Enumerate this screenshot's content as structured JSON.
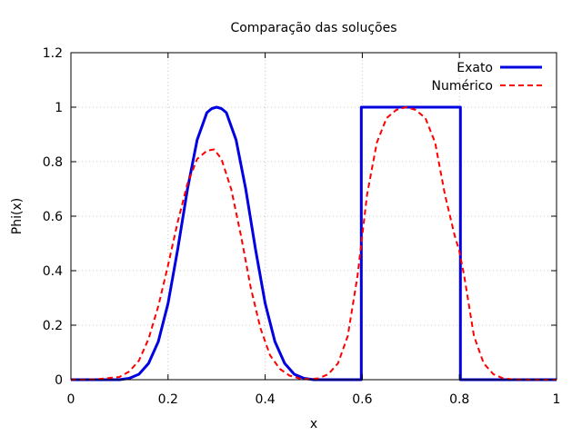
{
  "chart_data": {
    "type": "line",
    "title": "Comparação das soluções",
    "xlabel": "x",
    "ylabel": "Phi(x)",
    "xlim": [
      0,
      1
    ],
    "ylim": [
      0,
      1.2
    ],
    "xticks": [
      0,
      0.2,
      0.4,
      0.6,
      0.8,
      1
    ],
    "yticks": [
      0,
      0.2,
      0.4,
      0.6,
      0.8,
      1,
      1.2
    ],
    "grid": true,
    "legend": "top-right",
    "series": [
      {
        "name": "Exato",
        "color": "#0000e0",
        "dash": "solid",
        "x": [
          0,
          0.1,
          0.12,
          0.14,
          0.16,
          0.18,
          0.2,
          0.22,
          0.24,
          0.26,
          0.28,
          0.29,
          0.3,
          0.31,
          0.32,
          0.34,
          0.36,
          0.38,
          0.4,
          0.42,
          0.44,
          0.46,
          0.48,
          0.5,
          0.598,
          0.598,
          0.602,
          0.6,
          0.8,
          0.802,
          0.802,
          1.0
        ],
        "y": [
          0,
          0,
          0.005,
          0.02,
          0.06,
          0.14,
          0.28,
          0.48,
          0.7,
          0.88,
          0.98,
          0.995,
          1.0,
          0.995,
          0.98,
          0.88,
          0.7,
          0.48,
          0.28,
          0.14,
          0.06,
          0.02,
          0.005,
          0,
          0,
          1.0,
          1.0,
          1.0,
          1.0,
          1.0,
          0,
          0
        ]
      },
      {
        "name": "Numérico",
        "color": "#ff0000",
        "dash": "dashed",
        "x": [
          0,
          0.05,
          0.1,
          0.12,
          0.14,
          0.16,
          0.18,
          0.2,
          0.22,
          0.24,
          0.26,
          0.28,
          0.295,
          0.31,
          0.33,
          0.35,
          0.37,
          0.39,
          0.41,
          0.43,
          0.45,
          0.47,
          0.49,
          0.51,
          0.53,
          0.55,
          0.57,
          0.59,
          0.6,
          0.61,
          0.63,
          0.65,
          0.67,
          0.69,
          0.71,
          0.73,
          0.75,
          0.77,
          0.79,
          0.8,
          0.81,
          0.83,
          0.85,
          0.87,
          0.89,
          0.91,
          0.95,
          1.0
        ],
        "y": [
          0,
          0.001,
          0.01,
          0.03,
          0.07,
          0.15,
          0.27,
          0.42,
          0.58,
          0.72,
          0.81,
          0.84,
          0.845,
          0.81,
          0.7,
          0.53,
          0.34,
          0.19,
          0.09,
          0.04,
          0.015,
          0.005,
          0.002,
          0.005,
          0.02,
          0.06,
          0.16,
          0.38,
          0.53,
          0.68,
          0.87,
          0.96,
          0.99,
          1.0,
          0.99,
          0.96,
          0.87,
          0.68,
          0.53,
          0.47,
          0.38,
          0.16,
          0.06,
          0.02,
          0.005,
          0.001,
          0,
          0
        ]
      }
    ]
  }
}
